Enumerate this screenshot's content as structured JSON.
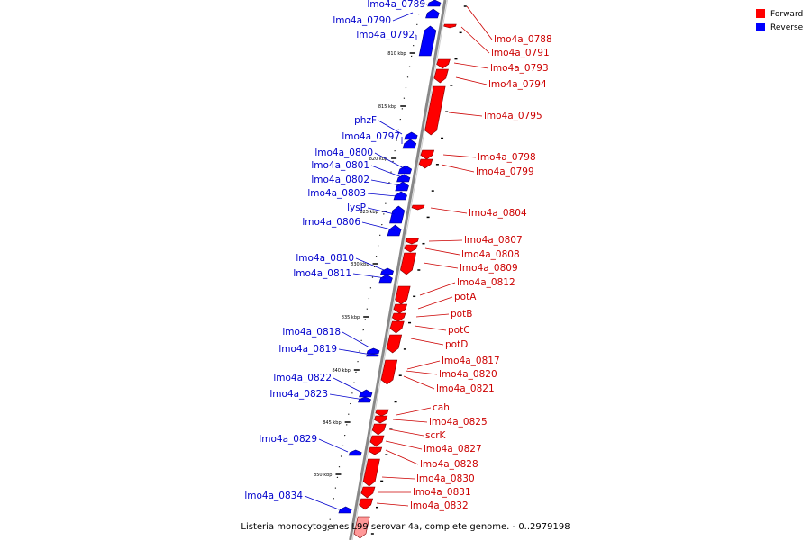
{
  "legend": [
    {
      "label": "Forward",
      "color": "#ff0000"
    },
    {
      "label": "Reverse",
      "color": "#0000ff"
    }
  ],
  "caption": "Listeria monocytogenes L99 serovar 4a, complete genome. - 0..2979198",
  "colors": {
    "forward": "#ff0000",
    "reverse": "#0000ff",
    "backbone": "#888888",
    "forward_label": "#cc0000",
    "reverse_label": "#0000cc"
  },
  "scale_ticks": [
    "810 kbp",
    "815 kbp",
    "820 kbp",
    "825 kbp",
    "830 kbp",
    "835 kbp",
    "840 kbp",
    "845 kbp",
    "850 kbp"
  ],
  "reverse_genes": [
    "lmo4a_0789",
    "lmo4a_0790",
    "lmo4a_0792",
    "phzF",
    "lmo4a_0797",
    "lmo4a_0800",
    "lmo4a_0801",
    "lmo4a_0802",
    "lmo4a_0803",
    "lysP",
    "lmo4a_0806",
    "lmo4a_0810",
    "lmo4a_0811",
    "lmo4a_0818",
    "lmo4a_0819",
    "lmo4a_0822",
    "lmo4a_0823",
    "lmo4a_0829",
    "lmo4a_0834"
  ],
  "forward_genes": [
    "lmo4a_0788",
    "lmo4a_0791",
    "lmo4a_0793",
    "lmo4a_0794",
    "lmo4a_0795",
    "lmo4a_0798",
    "lmo4a_0799",
    "lmo4a_0804",
    "lmo4a_0807",
    "lmo4a_0808",
    "lmo4a_0809",
    "lmo4a_0812",
    "potA",
    "potB",
    "potC",
    "potD",
    "lmo4a_0817",
    "lmo4a_0820",
    "lmo4a_0821",
    "cah",
    "lmo4a_0825",
    "scrK",
    "lmo4a_0827",
    "lmo4a_0828",
    "lmo4a_0830",
    "lmo4a_0831",
    "lmo4a_0832"
  ]
}
